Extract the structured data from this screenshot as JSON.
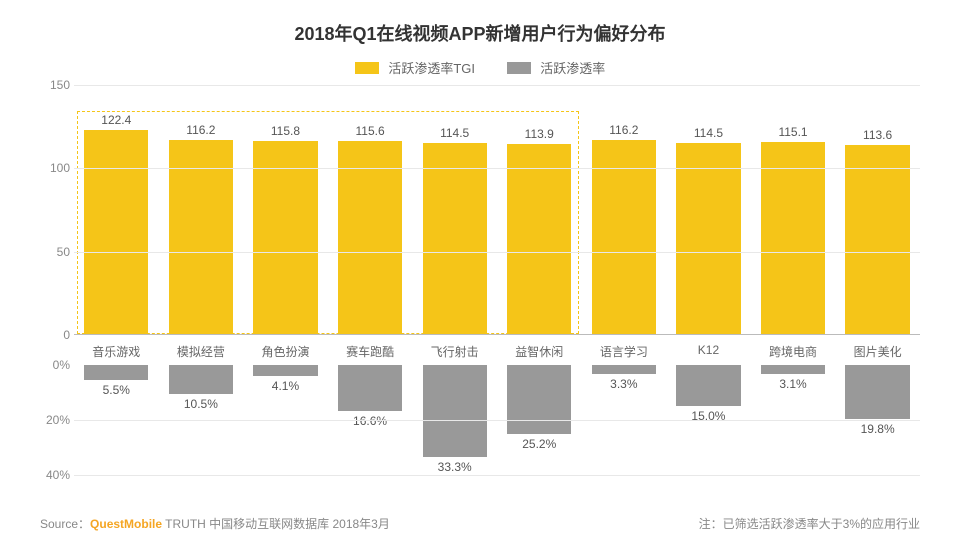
{
  "chart": {
    "type": "bar",
    "title": "2018年Q1在线视频APP新增用户行为偏好分布",
    "title_fontsize": 18,
    "background_color": "#ffffff",
    "grid_color": "#e8e8e8",
    "axis_color": "#bbbbbb",
    "text_color": "#666666",
    "legend": {
      "items": [
        {
          "label": "活跃渗透率TGI",
          "color": "#f5c518"
        },
        {
          "label": "活跃渗透率",
          "color": "#999999"
        }
      ]
    },
    "categories": [
      "音乐游戏",
      "模拟经营",
      "角色扮演",
      "赛车跑酷",
      "飞行射击",
      "益智休闲",
      "语言学习",
      "K12",
      "跨境电商",
      "图片美化"
    ],
    "series_tgi": {
      "name": "活跃渗透率TGI",
      "color": "#f5c518",
      "values": [
        122.4,
        116.2,
        115.8,
        115.6,
        114.5,
        113.9,
        116.2,
        114.5,
        115.1,
        113.6
      ],
      "value_labels": [
        "122.4",
        "116.2",
        "115.8",
        "115.6",
        "114.5",
        "113.9",
        "116.2",
        "114.5",
        "115.1",
        "113.6"
      ],
      "ylim": [
        0,
        150
      ],
      "yticks": [
        0,
        50,
        100,
        150
      ],
      "ytick_labels": [
        "0",
        "50",
        "100",
        "150"
      ]
    },
    "series_rate": {
      "name": "活跃渗透率",
      "color": "#999999",
      "values": [
        5.5,
        10.5,
        4.1,
        16.6,
        33.3,
        25.2,
        3.3,
        15.0,
        3.1,
        19.8
      ],
      "value_labels": [
        "5.5%",
        "10.5%",
        "4.1%",
        "16.6%",
        "33.3%",
        "25.2%",
        "3.3%",
        "15.0%",
        "3.1%",
        "19.8%"
      ],
      "ylim": [
        0,
        40
      ],
      "yticks": [
        0,
        20,
        40
      ],
      "ytick_labels": [
        "0%",
        "20%",
        "40%"
      ]
    },
    "highlight": {
      "start_index": 0,
      "end_index": 5,
      "border_color": "#f5c518"
    },
    "label_fontsize": 12
  },
  "footer": {
    "source_prefix": "Source：",
    "brand": "QuestMobile",
    "source_suffix": " TRUTH 中国移动互联网数据库 2018年3月",
    "note": "注：已筛选活跃渗透率大于3%的应用行业"
  }
}
